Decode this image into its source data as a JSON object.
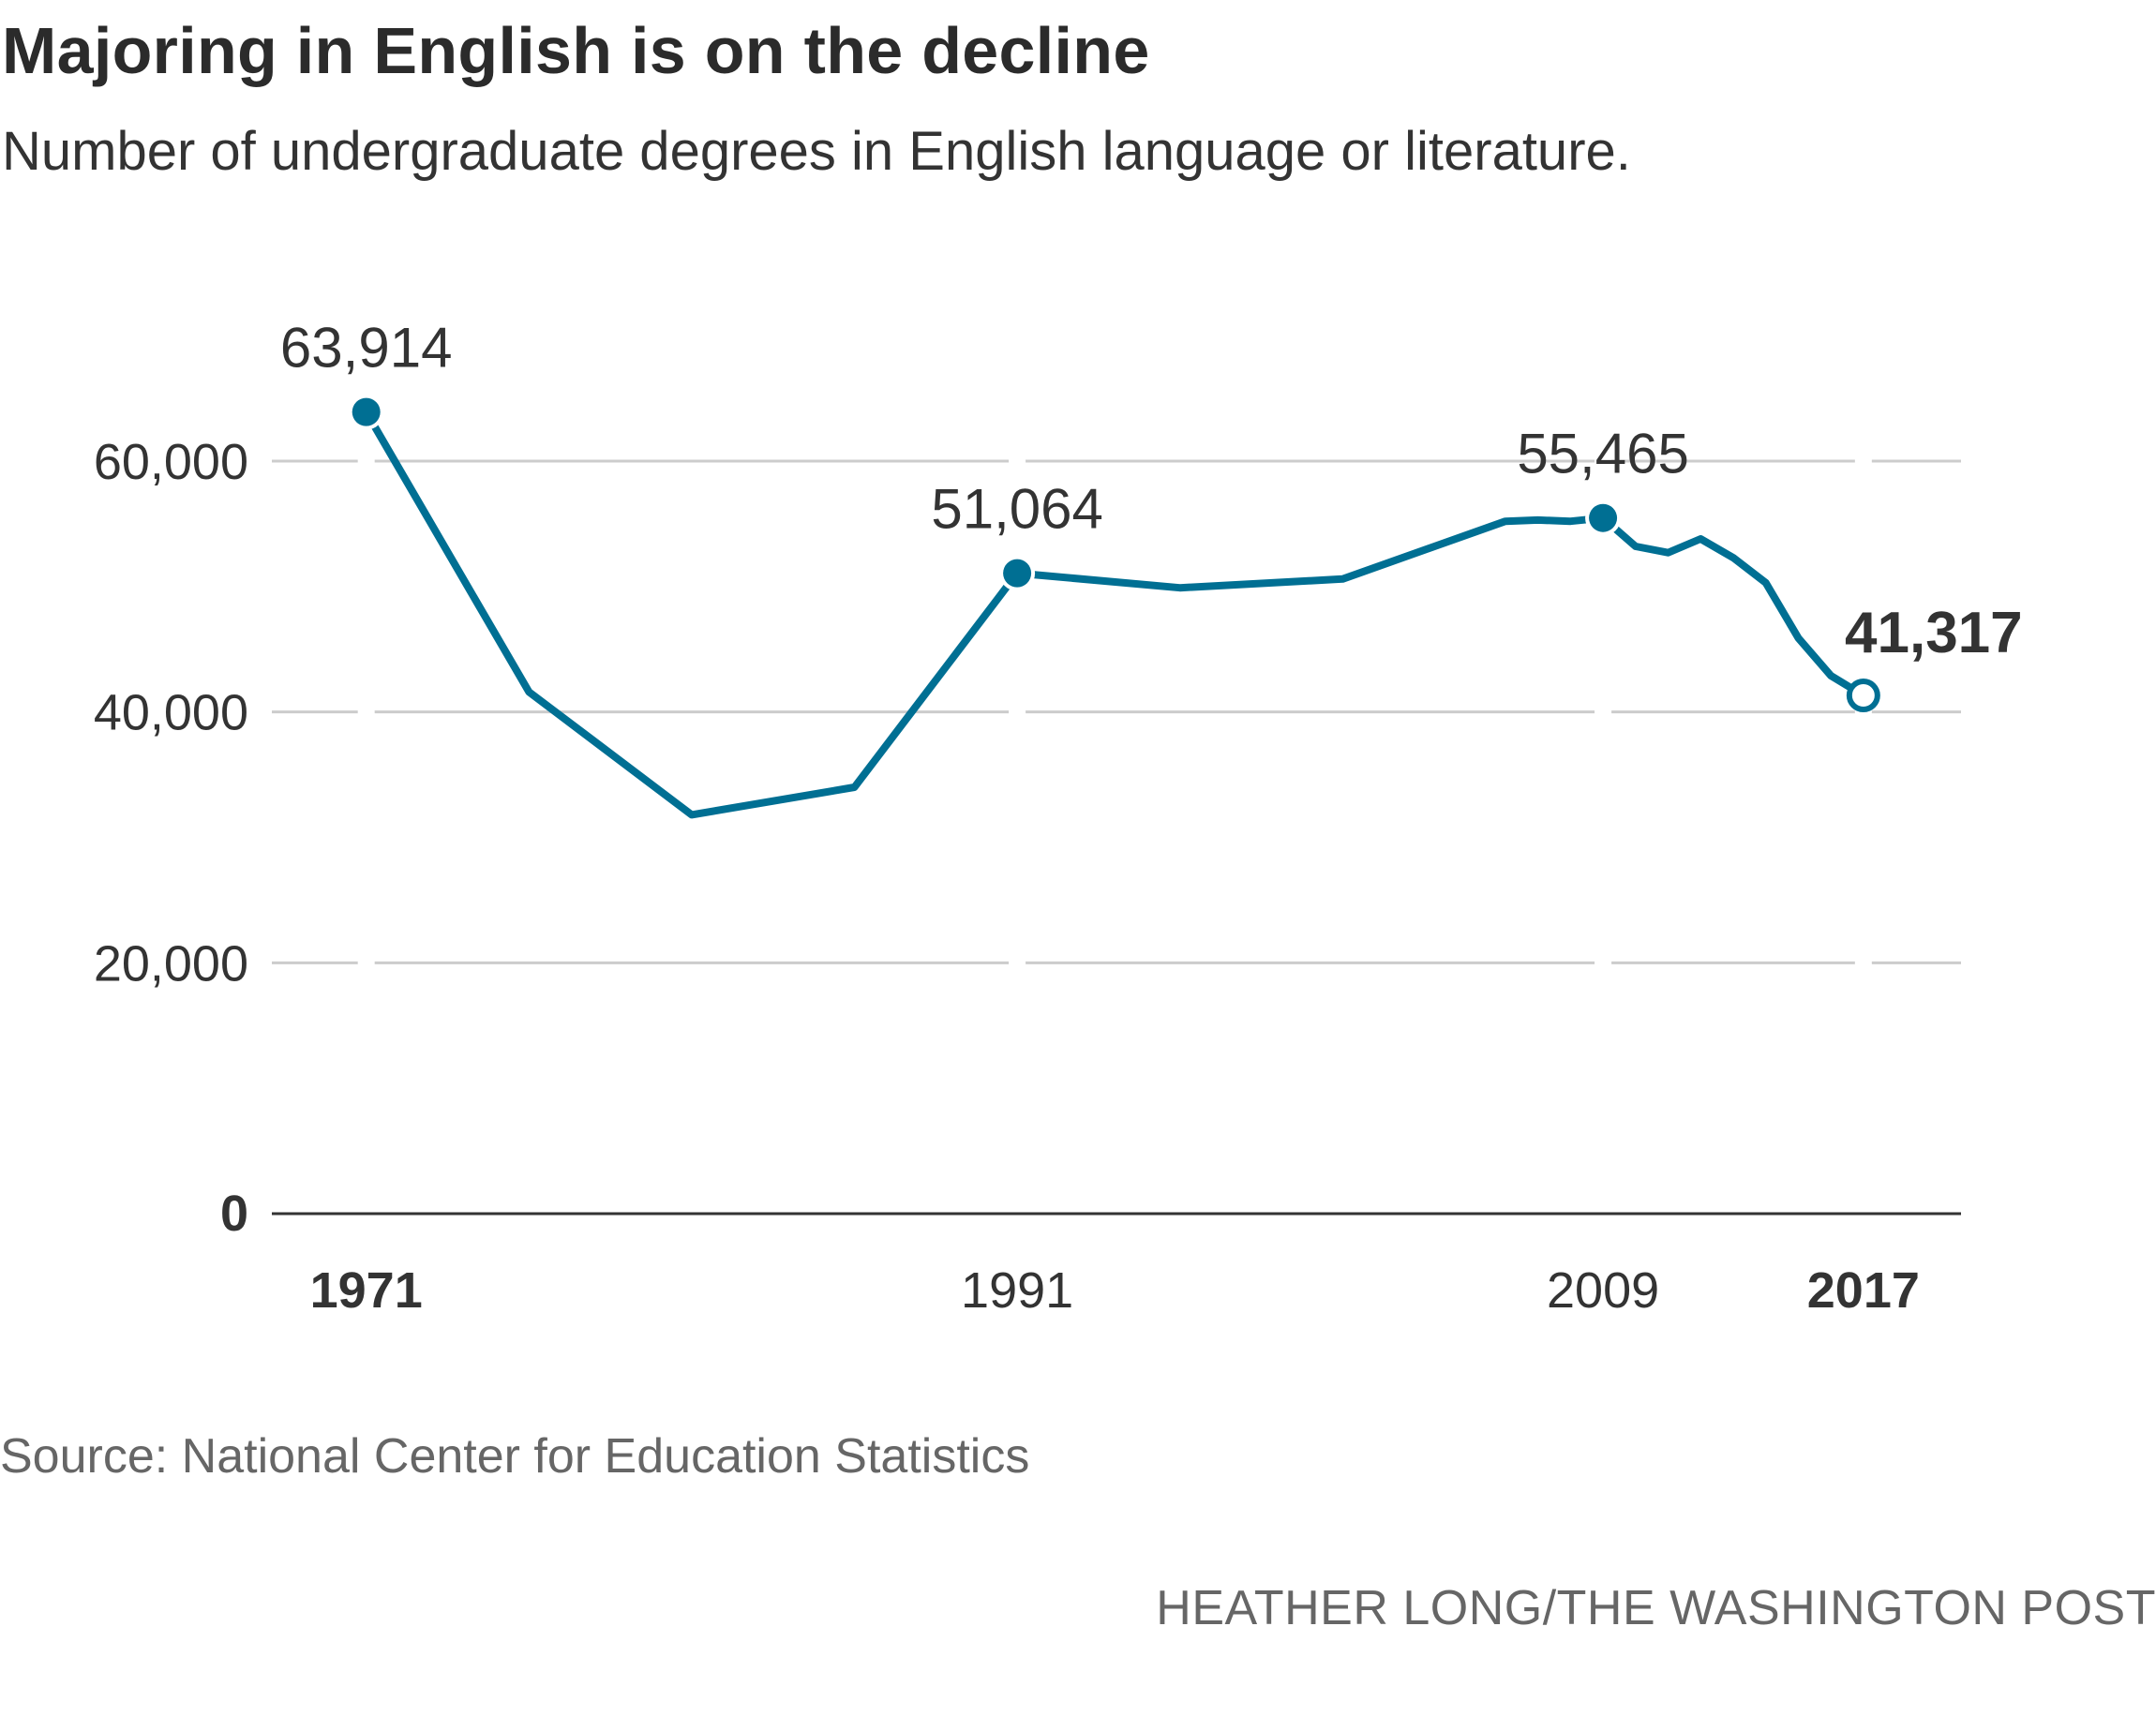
{
  "header": {
    "title": "Majoring in English is on the decline",
    "subtitle": "Number of undergraduate degrees in English language or literature."
  },
  "footer": {
    "source": "Source: National Center for Education Statistics",
    "credit": "HEATHER LONG/THE WASHINGTON POST"
  },
  "colors": {
    "line": "#006f93",
    "grid": "#cccccc",
    "baseline": "#333333",
    "text": "#333333"
  },
  "chart_data": {
    "type": "line",
    "title": "Majoring in English is on the decline",
    "subtitle": "Number of undergraduate degrees in English language or literature.",
    "xlabel": "",
    "ylabel": "",
    "xlim": [
      1968.1,
      2020
    ],
    "ylim": [
      0,
      60000
    ],
    "grid": true,
    "y_ticks": [
      {
        "value": 0,
        "label": "0",
        "bold": true
      },
      {
        "value": 20000,
        "label": "20,000",
        "bold": false
      },
      {
        "value": 40000,
        "label": "40,000",
        "bold": false
      },
      {
        "value": 60000,
        "label": "60,000",
        "bold": false
      }
    ],
    "x_ticks": [
      {
        "value": 1971,
        "label": "1971",
        "bold": true
      },
      {
        "value": 1991,
        "label": "1991",
        "bold": false
      },
      {
        "value": 2009,
        "label": "2009",
        "bold": false
      },
      {
        "value": 2017,
        "label": "2017",
        "bold": true
      }
    ],
    "series": [
      {
        "x": [
          1971,
          1976,
          1981,
          1986,
          1991,
          1996,
          2001,
          2006,
          2007,
          2008,
          2009,
          2010,
          2011,
          2012,
          2013,
          2014,
          2015,
          2016,
          2017
        ],
        "y": [
          63914,
          41600,
          31800,
          34000,
          51064,
          49900,
          50600,
          55200,
          55300,
          55200,
          55465,
          53200,
          52700,
          53800,
          52300,
          50300,
          45900,
          42900,
          41317
        ]
      }
    ],
    "annotations": [
      {
        "x": 1971,
        "y": 63914,
        "label": "63,914",
        "marker": "filled",
        "bold": false
      },
      {
        "x": 1991,
        "y": 51064,
        "label": "51,064",
        "marker": "filled",
        "bold": false
      },
      {
        "x": 2009,
        "y": 55465,
        "label": "55,465",
        "marker": "filled",
        "bold": false
      },
      {
        "x": 2017,
        "y": 41317,
        "label": "41,317",
        "marker": "open",
        "bold": true
      }
    ]
  }
}
